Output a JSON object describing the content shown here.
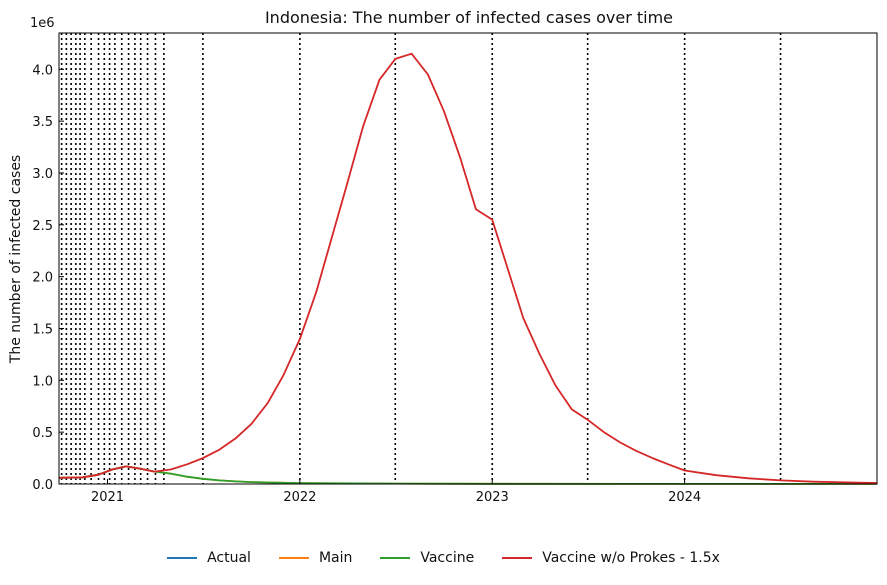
{
  "chart_data": {
    "type": "line",
    "title": "Indonesia: The number of infected cases over time",
    "xlabel": "",
    "ylabel": "The number of infected cases",
    "y_multiplier_label": "1e6",
    "xlim": [
      "2020-10-01",
      "2024-12-31"
    ],
    "ylim": [
      0,
      4.35
    ],
    "x_ticks": [
      "2021-01-01",
      "2022-01-01",
      "2023-01-01",
      "2024-01-01"
    ],
    "x_tick_labels": [
      "2021",
      "2022",
      "2023",
      "2024"
    ],
    "y_ticks": [
      0.0,
      0.5,
      1.0,
      1.5,
      2.0,
      2.5,
      3.0,
      3.5,
      4.0
    ],
    "y_tick_labels": [
      "0.0",
      "0.5",
      "1.0",
      "1.5",
      "2.0",
      "2.5",
      "3.0",
      "3.5",
      "4.0"
    ],
    "grid": false,
    "legend_position": "bottom-center",
    "vertical_markers": [
      "2020-10-06",
      "2020-10-15",
      "2020-10-24",
      "2020-11-02",
      "2020-11-10",
      "2020-11-19",
      "2020-12-01",
      "2020-12-15",
      "2020-12-26",
      "2021-01-05",
      "2021-01-15",
      "2021-01-28",
      "2021-02-10",
      "2021-02-22",
      "2021-03-05",
      "2021-03-18",
      "2021-04-02",
      "2021-04-18",
      "2021-07-01",
      "2022-01-01",
      "2022-07-01",
      "2023-01-01",
      "2023-07-01",
      "2024-01-01",
      "2024-07-01"
    ],
    "series": [
      {
        "name": "Actual",
        "color": "#1f77b4",
        "x": [
          "2020-10-01",
          "2020-11-15",
          "2020-12-15",
          "2021-01-10",
          "2021-02-05",
          "2021-03-01",
          "2021-03-31"
        ],
        "values": [
          0.06,
          0.065,
          0.09,
          0.14,
          0.17,
          0.15,
          0.12
        ]
      },
      {
        "name": "Main",
        "color": "#ff7f0e",
        "x": [
          "2020-10-01",
          "2020-11-15",
          "2020-12-15",
          "2021-01-10",
          "2021-02-05",
          "2021-03-01",
          "2021-04-01",
          "2021-05-01",
          "2021-06-01",
          "2021-07-01",
          "2021-08-01",
          "2021-09-01",
          "2021-10-01",
          "2022-01-01",
          "2022-07-01",
          "2023-01-01",
          "2024-01-01",
          "2024-12-31"
        ],
        "values": [
          0.06,
          0.065,
          0.09,
          0.14,
          0.17,
          0.15,
          0.12,
          0.1,
          0.07,
          0.05,
          0.035,
          0.025,
          0.018,
          0.008,
          0.004,
          0.002,
          0.001,
          0.0005
        ]
      },
      {
        "name": "Vaccine",
        "color": "#2ca02c",
        "x": [
          "2020-10-01",
          "2020-11-15",
          "2020-12-15",
          "2021-01-10",
          "2021-02-05",
          "2021-03-01",
          "2021-04-01",
          "2021-05-01",
          "2021-06-01",
          "2021-07-01",
          "2021-08-01",
          "2021-09-01",
          "2021-10-01",
          "2022-01-01",
          "2022-07-01",
          "2023-01-01",
          "2024-01-01",
          "2024-12-31"
        ],
        "values": [
          0.06,
          0.065,
          0.09,
          0.14,
          0.17,
          0.15,
          0.12,
          0.1,
          0.07,
          0.05,
          0.035,
          0.025,
          0.018,
          0.008,
          0.004,
          0.002,
          0.001,
          0.0005
        ]
      },
      {
        "name": "Vaccine w/o Prokes - 1.5x",
        "color": "#d62728",
        "x": [
          "2020-10-01",
          "2020-11-15",
          "2020-12-15",
          "2021-01-10",
          "2021-02-05",
          "2021-03-01",
          "2021-03-31",
          "2021-05-01",
          "2021-06-01",
          "2021-07-01",
          "2021-08-01",
          "2021-09-01",
          "2021-10-01",
          "2021-11-01",
          "2021-12-01",
          "2022-01-01",
          "2022-02-01",
          "2022-03-01",
          "2022-04-01",
          "2022-05-01",
          "2022-06-01",
          "2022-07-01",
          "2022-08-01",
          "2022-09-01",
          "2022-10-01",
          "2022-11-01",
          "2022-12-01",
          "2023-01-01",
          "2023-02-01",
          "2023-03-01",
          "2023-04-01",
          "2023-05-01",
          "2023-06-01",
          "2023-07-01",
          "2023-08-01",
          "2023-09-01",
          "2023-10-01",
          "2023-11-01",
          "2023-12-01",
          "2024-01-01",
          "2024-03-01",
          "2024-05-01",
          "2024-07-01",
          "2024-09-01",
          "2024-12-31"
        ],
        "values": [
          0.06,
          0.065,
          0.09,
          0.14,
          0.17,
          0.15,
          0.12,
          0.14,
          0.19,
          0.25,
          0.33,
          0.44,
          0.58,
          0.78,
          1.05,
          1.4,
          1.85,
          2.35,
          2.9,
          3.45,
          3.9,
          4.1,
          4.15,
          3.95,
          3.6,
          3.15,
          2.65,
          2.55,
          2.05,
          1.6,
          1.25,
          0.95,
          0.72,
          0.62,
          0.5,
          0.4,
          0.32,
          0.25,
          0.19,
          0.13,
          0.085,
          0.055,
          0.035,
          0.022,
          0.01
        ]
      }
    ]
  }
}
